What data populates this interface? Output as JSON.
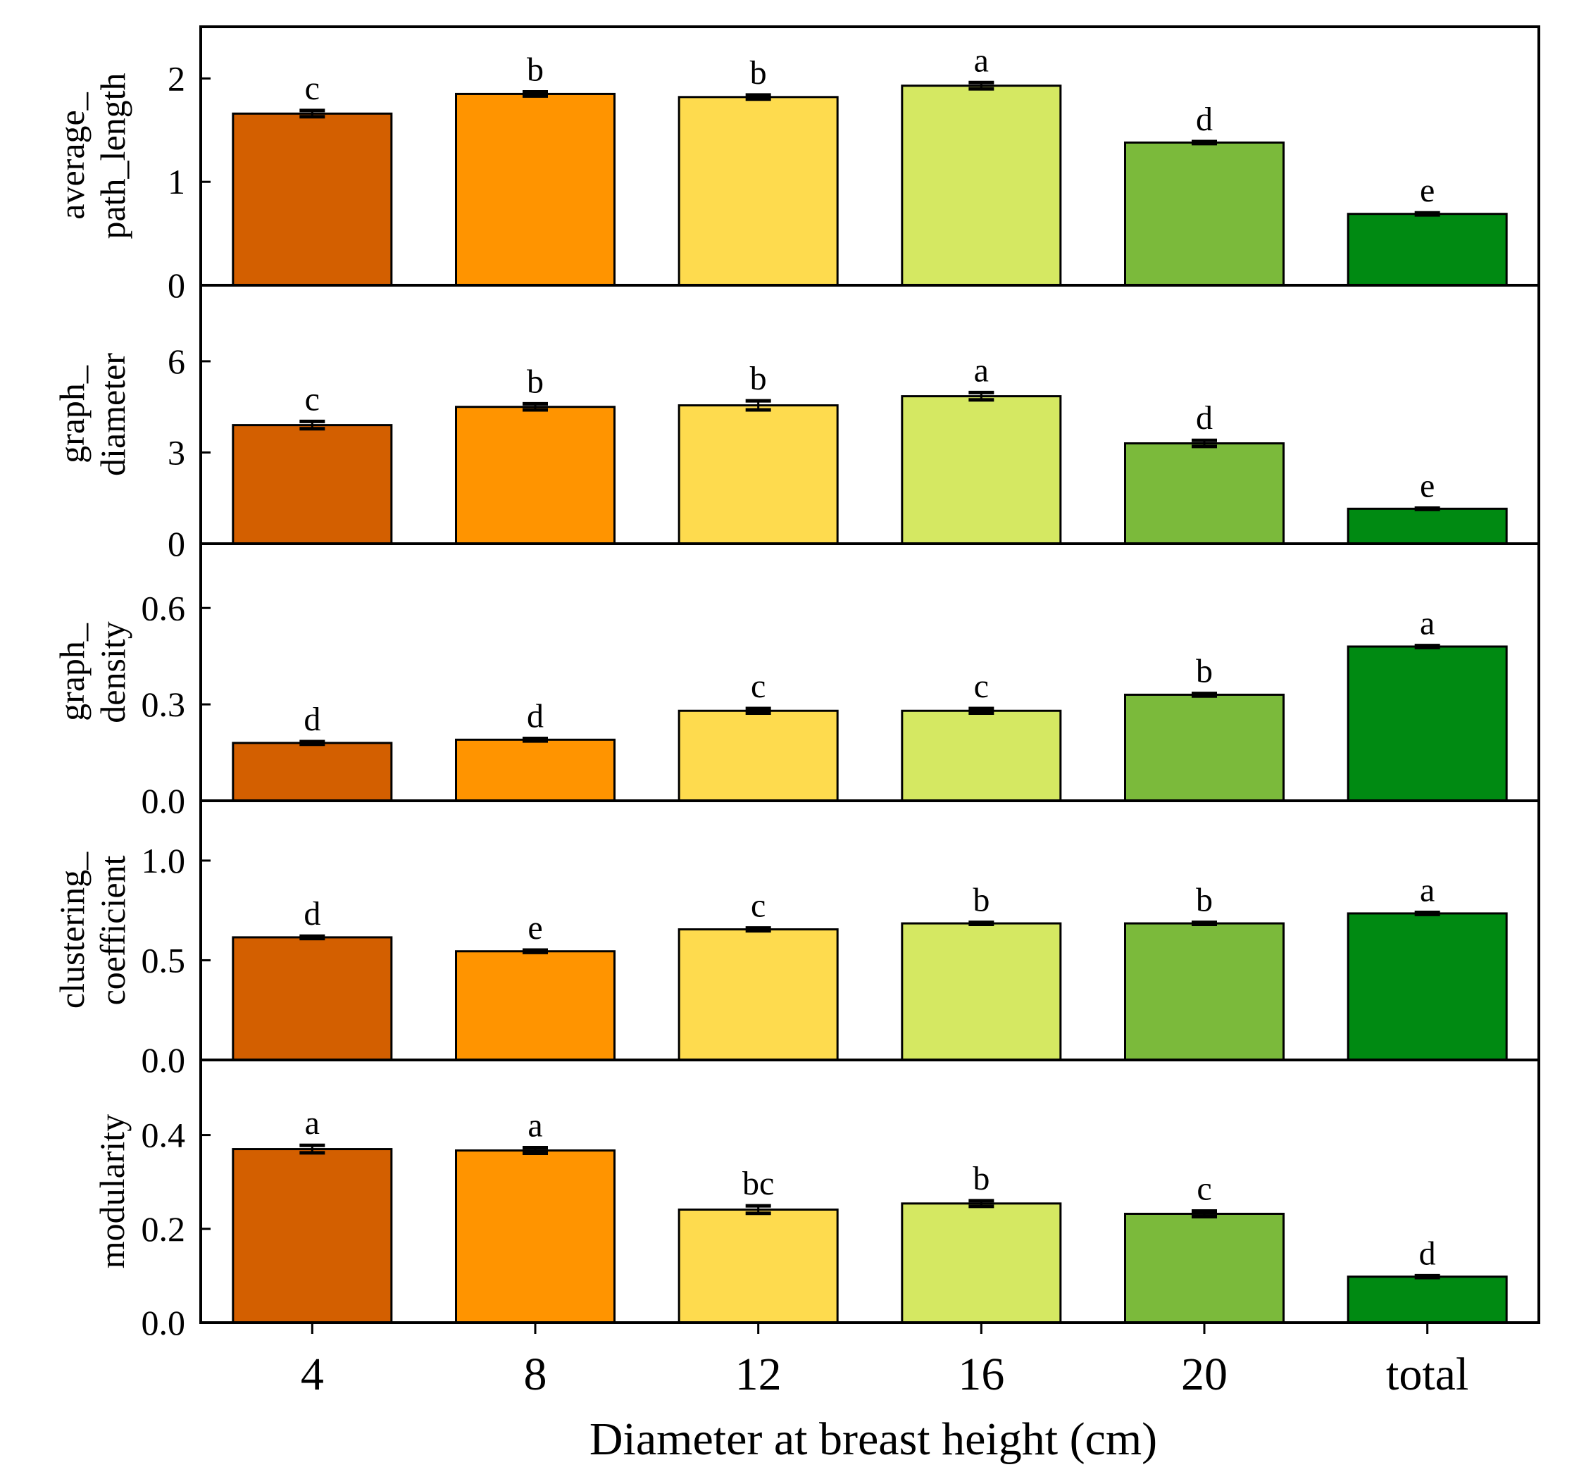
{
  "chart_data": {
    "type": "bar",
    "xlabel": "Diameter at breast height (cm)",
    "categories": [
      "4",
      "8",
      "12",
      "16",
      "20",
      "total"
    ],
    "colors": [
      "#D35F00",
      "#FF9400",
      "#FEDB4E",
      "#D5E862",
      "#7BBA3B",
      "#008A12"
    ],
    "panels": [
      {
        "ylabel": [
          "average_",
          "path_length"
        ],
        "ylim": [
          0,
          2.5
        ],
        "yticks": [
          0,
          1,
          2
        ],
        "ytick_labels": [
          "0",
          "1",
          "2"
        ],
        "values": [
          1.66,
          1.85,
          1.82,
          1.93,
          1.38,
          0.69
        ],
        "errors": [
          0.03,
          0.02,
          0.02,
          0.03,
          0.01,
          0.01
        ],
        "letters": [
          "c",
          "b",
          "b",
          "a",
          "d",
          "e"
        ]
      },
      {
        "ylabel": [
          "graph_",
          "diameter"
        ],
        "ylim": [
          0,
          8.5
        ],
        "yticks": [
          0,
          3,
          6
        ],
        "ytick_labels": [
          "0",
          "3",
          "6"
        ],
        "values": [
          3.9,
          4.5,
          4.55,
          4.85,
          3.3,
          1.15
        ],
        "errors": [
          0.12,
          0.1,
          0.15,
          0.12,
          0.1,
          0.02
        ],
        "letters": [
          "c",
          "b",
          "b",
          "a",
          "d",
          "e"
        ]
      },
      {
        "ylabel": [
          "graph_",
          "density"
        ],
        "ylim": [
          0,
          0.8
        ],
        "yticks": [
          0,
          0.3,
          0.6
        ],
        "ytick_labels": [
          "0.0",
          "0.3",
          "0.6"
        ],
        "values": [
          0.18,
          0.19,
          0.28,
          0.28,
          0.33,
          0.48
        ],
        "errors": [
          0.004,
          0.004,
          0.007,
          0.007,
          0.004,
          0.003
        ],
        "letters": [
          "d",
          "d",
          "c",
          "c",
          "b",
          "a"
        ]
      },
      {
        "ylabel": [
          "clustering_",
          "coefficient"
        ],
        "ylim": [
          0,
          1.3
        ],
        "yticks": [
          0,
          0.5,
          1
        ],
        "ytick_labels": [
          "0.0",
          "0.5",
          "1.0"
        ],
        "values": [
          0.615,
          0.545,
          0.655,
          0.685,
          0.685,
          0.735
        ],
        "errors": [
          0.006,
          0.006,
          0.007,
          0.005,
          0.005,
          0.005
        ],
        "letters": [
          "d",
          "e",
          "c",
          "b",
          "b",
          "a"
        ]
      },
      {
        "ylabel": [
          "modularity"
        ],
        "ylim": [
          0,
          0.56
        ],
        "yticks": [
          0,
          0.2,
          0.4
        ],
        "ytick_labels": [
          "0.0",
          "0.2",
          "0.4"
        ],
        "values": [
          0.37,
          0.367,
          0.241,
          0.254,
          0.232,
          0.098
        ],
        "errors": [
          0.008,
          0.006,
          0.008,
          0.006,
          0.006,
          0.002
        ],
        "letters": [
          "a",
          "a",
          "bc",
          "b",
          "c",
          "d"
        ]
      }
    ]
  }
}
